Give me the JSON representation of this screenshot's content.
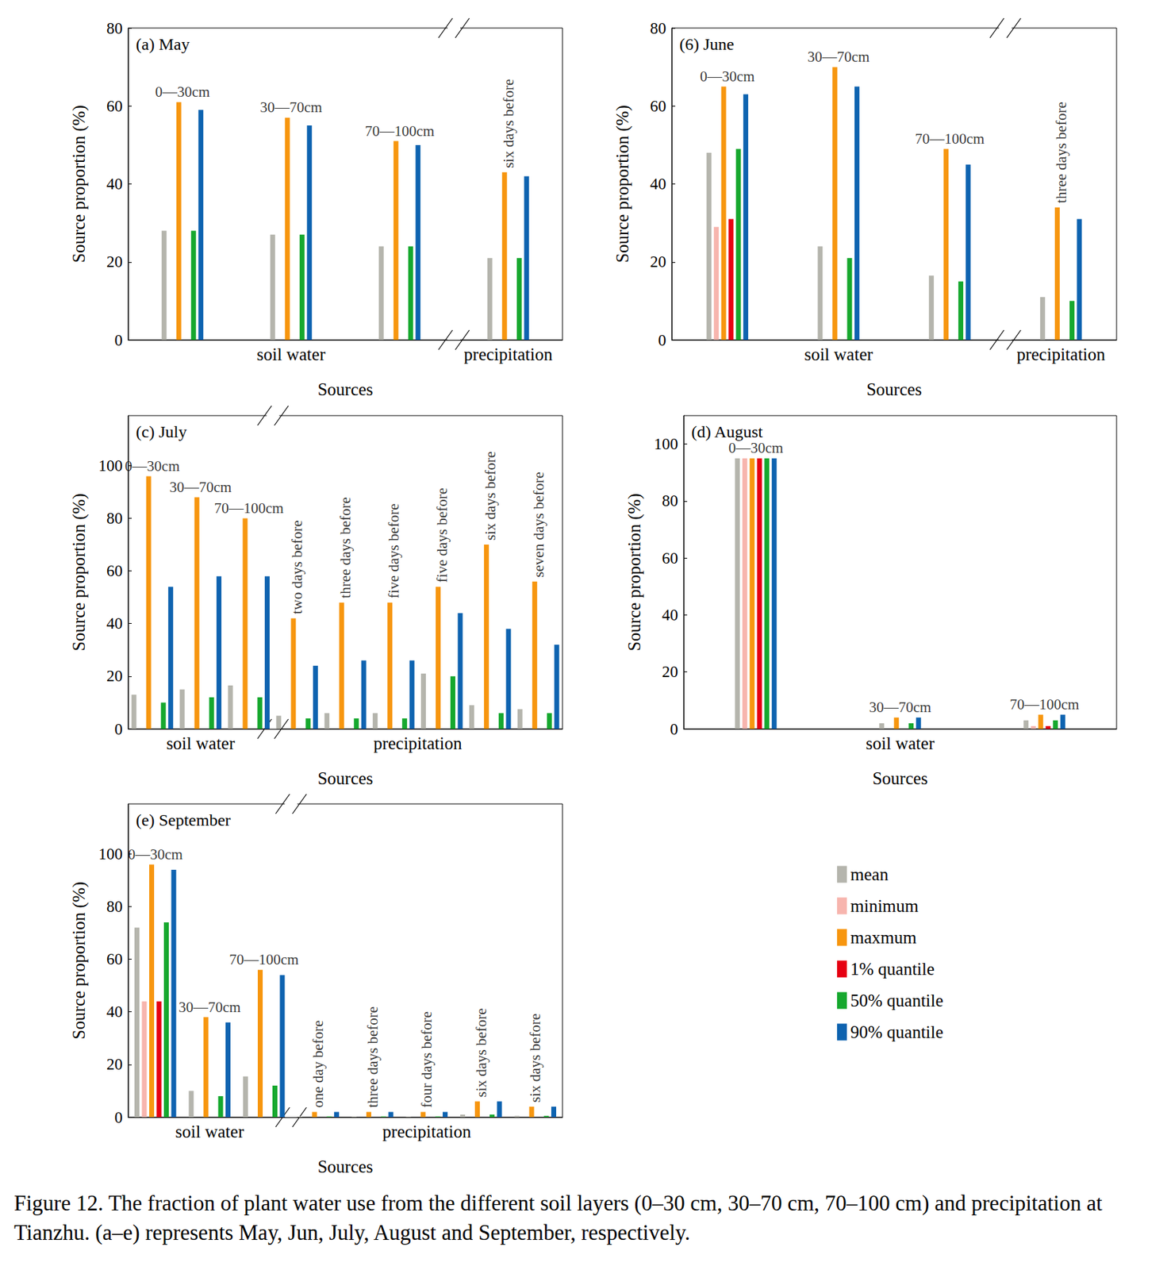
{
  "caption": "Figure 12. The fraction of plant water use from the different soil layers (0–30 cm, 30–70 cm, 70–100 cm) and precipitation at Tianzhu. (a–e) represents May, Jun, July, August and September, respectively.",
  "chart_data": [
    {
      "type": "bar",
      "title": "(a) May",
      "xlabel": "Sources",
      "ylabel": "Source proportion (%)",
      "categories": [
        "0—30cm",
        "30—70cm",
        "70—100cm",
        "six days before"
      ],
      "sections": [
        "soil water",
        "soil water",
        "soil water",
        "precipitation"
      ],
      "ylim": [
        0,
        80
      ],
      "yticks": [
        0,
        20,
        40,
        60,
        80
      ],
      "grid": false,
      "series": [
        {
          "name": "mean",
          "color": "#b5b5ad",
          "values": [
            28,
            27,
            24,
            21
          ]
        },
        {
          "name": "minimum",
          "color": "#f7b5ae",
          "values": [
            0,
            0,
            0,
            0
          ]
        },
        {
          "name": "maxmum",
          "color": "#f7960f",
          "values": [
            61,
            57,
            51,
            43
          ]
        },
        {
          "name": "1% quantile",
          "color": "#e60012",
          "values": [
            0,
            0,
            0,
            0
          ]
        },
        {
          "name": "50% quantile",
          "color": "#16a82e",
          "values": [
            28,
            27,
            24,
            21
          ]
        },
        {
          "name": "90% quantile",
          "color": "#0e63b0",
          "values": [
            59,
            55,
            50,
            42
          ]
        }
      ]
    },
    {
      "type": "bar",
      "title": "(6) June",
      "xlabel": "Sources",
      "ylabel": "Source proportion (%)",
      "categories": [
        "0—30cm",
        "30—70cm",
        "70—100cm",
        "three days before"
      ],
      "sections": [
        "soil water",
        "soil water",
        "soil water",
        "precipitation"
      ],
      "ylim": [
        0,
        80
      ],
      "yticks": [
        0,
        20,
        40,
        60,
        80
      ],
      "grid": false,
      "series": [
        {
          "name": "mean",
          "color": "#b5b5ad",
          "values": [
            48,
            24,
            16.5,
            11
          ]
        },
        {
          "name": "minimum",
          "color": "#f7b5ae",
          "values": [
            29,
            0,
            0,
            0
          ]
        },
        {
          "name": "maxmum",
          "color": "#f7960f",
          "values": [
            65,
            70,
            49,
            34
          ]
        },
        {
          "name": "1% quantile",
          "color": "#e60012",
          "values": [
            31,
            0,
            0,
            0
          ]
        },
        {
          "name": "50% quantile",
          "color": "#16a82e",
          "values": [
            49,
            21,
            15,
            10
          ]
        },
        {
          "name": "90% quantile",
          "color": "#0e63b0",
          "values": [
            63,
            65,
            45,
            31
          ]
        }
      ]
    },
    {
      "type": "bar",
      "title": "(c) July",
      "xlabel": "Sources",
      "ylabel": "Source proportion (%)",
      "categories": [
        "0—30cm",
        "30—70cm",
        "70—100cm",
        "two days before",
        "three days before",
        "five days before",
        "five days before",
        "six days before",
        "seven days before"
      ],
      "sections": [
        "soil water",
        "soil water",
        "soil water",
        "precipitation",
        "precipitation",
        "precipitation",
        "precipitation",
        "precipitation",
        "precipitation"
      ],
      "ylim": [
        0,
        119
      ],
      "yticks": [
        0,
        20,
        40,
        60,
        80,
        100
      ],
      "grid": false,
      "series": [
        {
          "name": "mean",
          "color": "#b5b5ad",
          "values": [
            13,
            15,
            16.5,
            5,
            6,
            6,
            21,
            9,
            7.5
          ]
        },
        {
          "name": "minimum",
          "color": "#f7b5ae",
          "values": [
            0,
            0,
            0,
            0,
            0,
            0,
            0,
            0,
            0
          ]
        },
        {
          "name": "maxmum",
          "color": "#f7960f",
          "values": [
            96,
            88,
            80,
            42,
            48,
            48,
            54,
            70,
            56
          ]
        },
        {
          "name": "1% quantile",
          "color": "#e60012",
          "values": [
            0,
            0,
            0,
            0,
            0,
            0,
            0,
            0,
            0
          ]
        },
        {
          "name": "50% quantile",
          "color": "#16a82e",
          "values": [
            10,
            12,
            12,
            4,
            4,
            4,
            20,
            6,
            6
          ]
        },
        {
          "name": "90% quantile",
          "color": "#0e63b0",
          "values": [
            54,
            58,
            58,
            24,
            26,
            26,
            44,
            38,
            32
          ]
        }
      ]
    },
    {
      "type": "bar",
      "title": "(d) August",
      "xlabel": "Sources",
      "ylabel": "Source proportion (%)",
      "categories": [
        "0—30cm",
        "30—70cm",
        "70—100cm"
      ],
      "sections": [
        "soil water",
        "soil water",
        "soil water"
      ],
      "ylim": [
        0,
        110
      ],
      "yticks": [
        0,
        20,
        40,
        60,
        80,
        100
      ],
      "grid": false,
      "series": [
        {
          "name": "mean",
          "color": "#b5b5ad",
          "values": [
            95,
            2,
            3
          ]
        },
        {
          "name": "minimum",
          "color": "#f7b5ae",
          "values": [
            95,
            0,
            1
          ]
        },
        {
          "name": "maxmum",
          "color": "#f7960f",
          "values": [
            95,
            4,
            5
          ]
        },
        {
          "name": "1% quantile",
          "color": "#e60012",
          "values": [
            95,
            0,
            1
          ]
        },
        {
          "name": "50% quantile",
          "color": "#16a82e",
          "values": [
            95,
            2,
            3
          ]
        },
        {
          "name": "90% quantile",
          "color": "#0e63b0",
          "values": [
            95,
            4,
            5
          ]
        }
      ]
    },
    {
      "type": "bar",
      "title": "(e) September",
      "xlabel": "Sources",
      "ylabel": "Source proportion (%)",
      "categories": [
        "0—30cm",
        "30—70cm",
        "70—100cm",
        "one day before",
        "three days before",
        "four days before",
        "six days before",
        "six days before"
      ],
      "sections": [
        "soil water",
        "soil water",
        "soil water",
        "precipitation",
        "precipitation",
        "precipitation",
        "precipitation",
        "precipitation"
      ],
      "ylim": [
        0,
        119
      ],
      "yticks": [
        0,
        20,
        40,
        60,
        80,
        100
      ],
      "grid": false,
      "legend": "lower right",
      "series": [
        {
          "name": "mean",
          "color": "#b5b5ad",
          "values": [
            72,
            10,
            15.5,
            0.3,
            0.3,
            0.3,
            1,
            0.5
          ]
        },
        {
          "name": "minimum",
          "color": "#f7b5ae",
          "values": [
            44,
            0,
            0,
            0,
            0,
            0,
            0,
            0
          ]
        },
        {
          "name": "maxmum",
          "color": "#f7960f",
          "values": [
            96,
            38,
            56,
            2,
            2,
            2,
            6,
            4
          ]
        },
        {
          "name": "1% quantile",
          "color": "#e60012",
          "values": [
            44,
            0,
            0,
            0,
            0,
            0,
            0,
            0
          ]
        },
        {
          "name": "50% quantile",
          "color": "#16a82e",
          "values": [
            74,
            8,
            12,
            0.3,
            0.3,
            0.3,
            1,
            0.5
          ]
        },
        {
          "name": "90% quantile",
          "color": "#0e63b0",
          "values": [
            94,
            36,
            54,
            2,
            2,
            2,
            6,
            4
          ]
        }
      ]
    }
  ]
}
